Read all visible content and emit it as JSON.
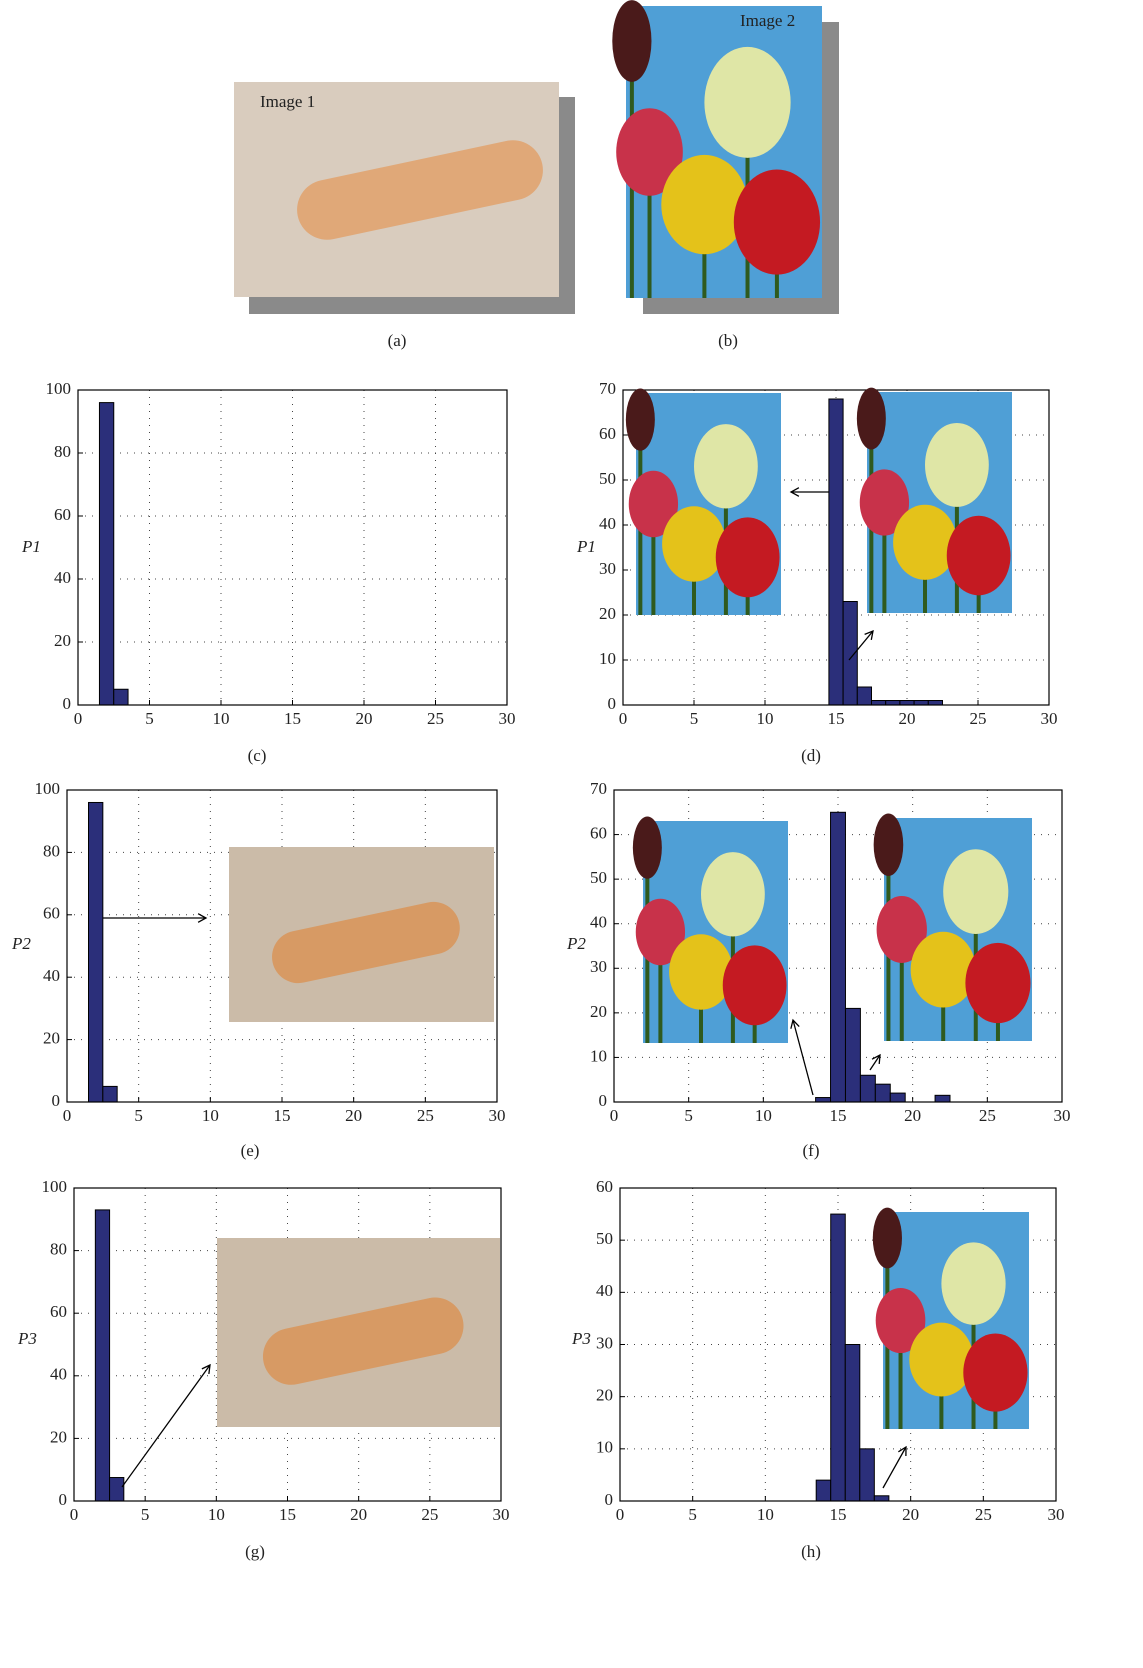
{
  "images": [
    {
      "label": "Image 1",
      "caption": "(a)"
    },
    {
      "label": "Image 2",
      "caption": "(b)"
    }
  ],
  "chart_data": [
    {
      "type": "histogram",
      "caption": "(c)",
      "y_label": "P1",
      "color": "#2b2f7a",
      "grid": true,
      "bins": [
        1.5,
        2.5,
        3.5
      ],
      "values": [
        96,
        5
      ],
      "xlim": [
        0,
        30
      ],
      "xticks": [
        0,
        5,
        10,
        15,
        20,
        25,
        30
      ],
      "ylim": [
        0,
        100
      ],
      "yticks": [
        0,
        20,
        40,
        60,
        80,
        100
      ]
    },
    {
      "type": "histogram",
      "caption": "(d)",
      "y_label": "P1",
      "color": "#2b2f7a",
      "grid": true,
      "bins": [
        14.5,
        15.5,
        16.5,
        17.5,
        18.5,
        19.5,
        20.5,
        21.5,
        22.5
      ],
      "values": [
        68,
        23,
        4,
        1,
        1,
        1,
        1,
        1
      ],
      "xlim": [
        0,
        30
      ],
      "xticks": [
        0,
        5,
        10,
        15,
        20,
        25,
        30
      ],
      "ylim": [
        0,
        70
      ],
      "yticks": [
        0,
        10,
        20,
        30,
        40,
        50,
        60,
        70
      ]
    },
    {
      "type": "histogram",
      "caption": "(e)",
      "y_label": "P2",
      "color": "#2b2f7a",
      "grid": true,
      "bins": [
        1.5,
        2.5,
        3.5
      ],
      "values": [
        96,
        5
      ],
      "xlim": [
        0,
        30
      ],
      "xticks": [
        0,
        5,
        10,
        15,
        20,
        25,
        30
      ],
      "ylim": [
        0,
        100
      ],
      "yticks": [
        0,
        20,
        40,
        60,
        80,
        100
      ]
    },
    {
      "type": "histogram",
      "caption": "(f)",
      "y_label": "P2",
      "color": "#2b2f7a",
      "grid": true,
      "bins": [
        13.5,
        14.5,
        15.5,
        16.5,
        17.5,
        18.5,
        19.5,
        20.5,
        21.5,
        22.5
      ],
      "values": [
        1,
        65,
        21,
        6,
        4,
        2,
        0,
        0,
        1.5
      ],
      "xlim": [
        0,
        30
      ],
      "xticks": [
        0,
        5,
        10,
        15,
        20,
        25,
        30
      ],
      "ylim": [
        0,
        70
      ],
      "yticks": [
        0,
        10,
        20,
        30,
        40,
        50,
        60,
        70
      ]
    },
    {
      "type": "histogram",
      "caption": "(g)",
      "y_label": "P3",
      "color": "#2b2f7a",
      "grid": true,
      "bins": [
        1.5,
        2.5,
        3.5
      ],
      "values": [
        93,
        7.5
      ],
      "xlim": [
        0,
        30
      ],
      "xticks": [
        0,
        5,
        10,
        15,
        20,
        25,
        30
      ],
      "ylim": [
        0,
        100
      ],
      "yticks": [
        0,
        20,
        40,
        60,
        80,
        100
      ]
    },
    {
      "type": "histogram",
      "caption": "(h)",
      "y_label": "P3",
      "color": "#2b2f7a",
      "grid": true,
      "bins": [
        13.5,
        14.5,
        15.5,
        16.5,
        17.5,
        18.5
      ],
      "values": [
        4,
        55,
        30,
        10,
        1
      ],
      "xlim": [
        0,
        30
      ],
      "xticks": [
        0,
        5,
        10,
        15,
        20,
        25,
        30
      ],
      "ylim": [
        0,
        60
      ],
      "yticks": [
        0,
        10,
        20,
        30,
        40,
        50,
        60
      ]
    }
  ]
}
